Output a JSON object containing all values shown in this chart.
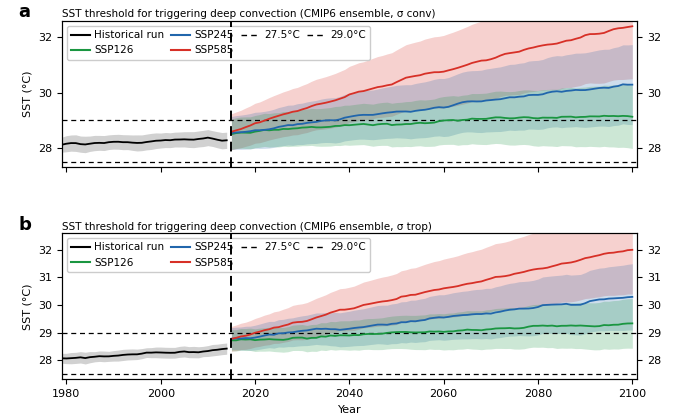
{
  "title_a": "SST threshold for triggering deep convection (CMIP6 ensemble, σ conv)",
  "title_b": "SST threshold for triggering deep convection (CMIP6 ensemble, σ trop)",
  "ylabel": "SST (°C)",
  "xlabel": "Year",
  "xlim": [
    1979,
    2101
  ],
  "ylim_a": [
    27.3,
    32.6
  ],
  "ylim_b": [
    27.3,
    32.6
  ],
  "yticks_a": [
    28,
    30,
    32
  ],
  "yticks_b": [
    28,
    29,
    30,
    31,
    32
  ],
  "dashed_lines_a": [
    27.5,
    29.0
  ],
  "dashed_lines_b": [
    27.5,
    29.0
  ],
  "vline_year": 2015,
  "hist_start": 1979,
  "hist_end": 2014,
  "proj_start": 2015,
  "proj_end": 2100,
  "colors": {
    "historical": "#000000",
    "ssp126": "#1a9641",
    "ssp245": "#2166ac",
    "ssp585": "#d73027"
  },
  "shading_alpha": 0.22,
  "background_color": "#ffffff",
  "legend_row1": [
    "Historical run",
    "SSP126",
    "SSP245",
    "SSP585"
  ],
  "legend_row2": [
    "27.5°C",
    "29.0°C"
  ]
}
